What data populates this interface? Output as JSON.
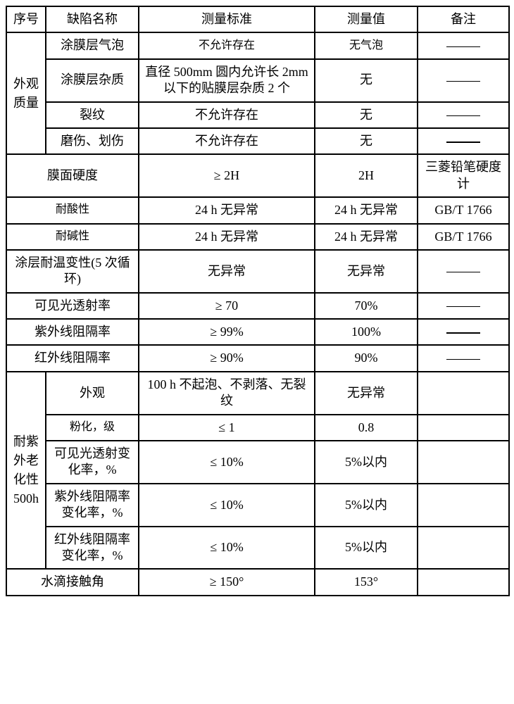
{
  "header": {
    "seq": "序号",
    "defect_name": "缺陷名称",
    "standard": "测量标准",
    "value": "测量值",
    "remark": "备注"
  },
  "appearance": {
    "group_label": "外观质量",
    "rows": [
      {
        "name": "涂膜层气泡",
        "standard": "不允许存在",
        "value": "无气泡"
      },
      {
        "name": "涂膜层杂质",
        "standard": "直径 500mm 圆内允许长 2mm 以下的贴膜层杂质 2 个",
        "value": "无"
      },
      {
        "name": "裂纹",
        "standard": "不允许存在",
        "value": "无"
      },
      {
        "name": "磨伤、划伤",
        "standard": "不允许存在",
        "value": "无"
      }
    ]
  },
  "singles": [
    {
      "name": "膜面硬度",
      "standard": "≥ 2H",
      "value": "2H",
      "remark": "三菱铅笔硬度计"
    },
    {
      "name": "耐酸性",
      "standard": "24 h 无异常",
      "value": "24 h 无异常",
      "remark": "GB/T 1766"
    },
    {
      "name": "耐碱性",
      "standard": "24 h 无异常",
      "value": "24 h 无异常",
      "remark": "GB/T 1766"
    },
    {
      "name": "涂层耐温变性(5 次循环)",
      "standard": "无异常",
      "value": "无异常",
      "remark": ""
    },
    {
      "name": "可见光透射率",
      "standard": "≥ 70",
      "value": "70%",
      "remark": ""
    },
    {
      "name": "紫外线阻隔率",
      "standard": "≥ 99%",
      "value": "100%",
      "remark": ""
    },
    {
      "name": "红外线阻隔率",
      "standard": "≥ 90%",
      "value": "90%",
      "remark": ""
    }
  ],
  "uv": {
    "group_label": "耐紫外老化性500h",
    "rows": [
      {
        "name": "外观",
        "standard": "100 h 不起泡、不剥落、无裂纹",
        "value": "无异常"
      },
      {
        "name": "粉化，级",
        "standard": "≤ 1",
        "value": "0.8"
      },
      {
        "name": "可见光透射变化率，%",
        "standard": "≤ 10%",
        "value": "5%以内"
      },
      {
        "name": "紫外线阻隔率变化率，%",
        "standard": "≤ 10%",
        "value": "5%以内"
      },
      {
        "name": "红外线阻隔率变化率，%",
        "standard": "≤ 10%",
        "value": "5%以内"
      }
    ]
  },
  "contact": {
    "name": "水滴接触角",
    "standard": "≥ 150°",
    "value": "153°"
  },
  "colwidths": {
    "c1": 56,
    "c2": 132,
    "c3": 250,
    "c4": 146,
    "c5": 130
  }
}
